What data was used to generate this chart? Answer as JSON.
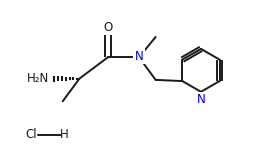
{
  "bg_color": "#ffffff",
  "line_color": "#1a1a1a",
  "atom_color": "#1a1a1a",
  "nitrogen_color": "#0000cd",
  "oxygen_color": "#1a1a1a",
  "fig_width": 2.66,
  "fig_height": 1.55,
  "dpi": 100,
  "xlim": [
    0,
    10.5
  ],
  "ylim": [
    0,
    6.5
  ]
}
